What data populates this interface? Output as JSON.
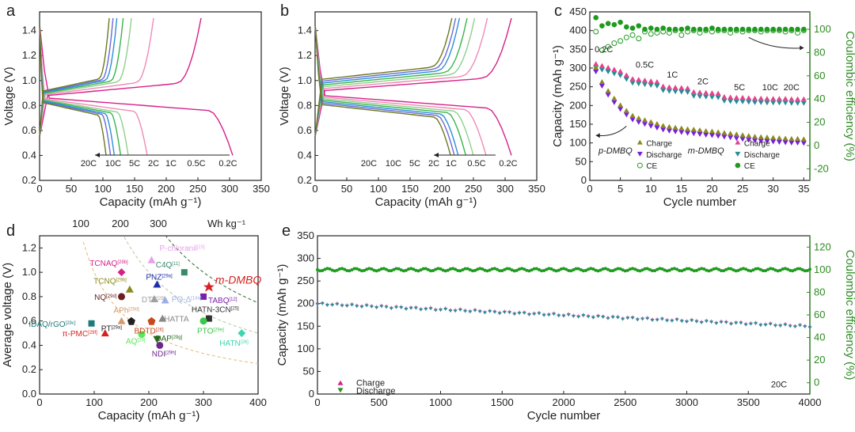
{
  "chart_data": [
    {
      "panel": "a",
      "type": "line",
      "xlabel": "Capacity (mAh g⁻¹)",
      "ylabel": "Voltage (V)",
      "xlim": [
        0,
        350
      ],
      "ylim": [
        0.2,
        1.55
      ],
      "xticks": [
        0,
        50,
        100,
        150,
        200,
        250,
        300,
        350
      ],
      "yticks": [
        0.2,
        0.4,
        0.6,
        0.8,
        1.0,
        1.2,
        1.4
      ],
      "series": [
        {
          "name": "0.2C",
          "color": "#d6218a",
          "charge_cap": 255,
          "discharge_cap": 305
        },
        {
          "name": "0.5C",
          "color": "#f08ab8",
          "charge_cap": 180,
          "discharge_cap": 170
        },
        {
          "name": "1C",
          "color": "#8fd08a",
          "charge_cap": 145,
          "discharge_cap": 140
        },
        {
          "name": "2C",
          "color": "#39b54a",
          "charge_cap": 132,
          "discharge_cap": 128
        },
        {
          "name": "5C",
          "color": "#2a8fd8",
          "charge_cap": 122,
          "discharge_cap": 118
        },
        {
          "name": "10C",
          "color": "#6a6ad8",
          "charge_cap": 116,
          "discharge_cap": 112
        },
        {
          "name": "20C",
          "color": "#6b7a1e",
          "charge_cap": 110,
          "discharge_cap": 105
        }
      ],
      "rate_labels": [
        "20C",
        "10C",
        "5C",
        "2C",
        "1C",
        "0.5C",
        "0.2C"
      ]
    },
    {
      "panel": "b",
      "type": "line",
      "xlabel": "Capacity (mAh g⁻¹)",
      "ylabel": "Voltage (V)",
      "xlim": [
        0,
        350
      ],
      "ylim": [
        0.2,
        1.55
      ],
      "xticks": [
        0,
        50,
        100,
        150,
        200,
        250,
        300,
        350
      ],
      "yticks": [
        0.2,
        0.4,
        0.6,
        0.8,
        1.0,
        1.2,
        1.4
      ],
      "series": [
        {
          "name": "0.2C",
          "color": "#d6218a",
          "charge_cap": 310,
          "discharge_cap": 310
        },
        {
          "name": "0.5C",
          "color": "#f08ab8",
          "charge_cap": 272,
          "discharge_cap": 270
        },
        {
          "name": "1C",
          "color": "#8fd08a",
          "charge_cap": 252,
          "discharge_cap": 250
        },
        {
          "name": "2C",
          "color": "#39b54a",
          "charge_cap": 240,
          "discharge_cap": 238
        },
        {
          "name": "5C",
          "color": "#2a8fd8",
          "charge_cap": 228,
          "discharge_cap": 226
        },
        {
          "name": "10C",
          "color": "#6a6ad8",
          "charge_cap": 222,
          "discharge_cap": 220
        },
        {
          "name": "20C",
          "color": "#6b7a1e",
          "charge_cap": 216,
          "discharge_cap": 214
        }
      ],
      "rate_labels": [
        "20C",
        "10C",
        "5C",
        "2C",
        "1C",
        "0.5C",
        "0.2C"
      ]
    },
    {
      "panel": "c",
      "type": "scatter",
      "xlabel": "Cycle number",
      "ylabel": "Capacity (mAh g⁻¹)",
      "ylabel_right": "Coulombic efficiency (%)",
      "xlim": [
        0,
        36
      ],
      "ylim": [
        0,
        450
      ],
      "ylim_right": [
        -30,
        115
      ],
      "xticks": [
        0,
        5,
        10,
        15,
        20,
        25,
        30,
        35
      ],
      "yticks": [
        0,
        50,
        100,
        150,
        200,
        250,
        300,
        350,
        400,
        450
      ],
      "yticks_right": [
        -20,
        0,
        20,
        40,
        60,
        80,
        100
      ],
      "rate_labels": [
        "0.2C",
        "0.5C",
        "1C",
        "2C",
        "5C",
        "10C",
        "20C"
      ],
      "p_charge": [
        300,
        262,
        238,
        218,
        200,
        185,
        172,
        165,
        160,
        155,
        150,
        145,
        142,
        140,
        138,
        136,
        135,
        133,
        131,
        130,
        128,
        126,
        124,
        122,
        120,
        118,
        116,
        115,
        114,
        113,
        112,
        111,
        110,
        110,
        109
      ],
      "m_charge": [
        310,
        305,
        300,
        295,
        290,
        280,
        270,
        268,
        266,
        264,
        262,
        250,
        248,
        247,
        246,
        245,
        235,
        234,
        233,
        232,
        231,
        222,
        221,
        220,
        220,
        219,
        218,
        218,
        217,
        217,
        217,
        217,
        216,
        216,
        216
      ],
      "p_ce": [
        98,
        82,
        85,
        88,
        90,
        93,
        95,
        92,
        98,
        96,
        97,
        98,
        97,
        99,
        95,
        98,
        99,
        97,
        99,
        98,
        99,
        99,
        97,
        99,
        98,
        99,
        99,
        98,
        99,
        99,
        99,
        98,
        99,
        97,
        99
      ],
      "m_ce": [
        110,
        103,
        105,
        104,
        106,
        102,
        101,
        103,
        100,
        101,
        100,
        101,
        100,
        100,
        100,
        101,
        100,
        100,
        100,
        101,
        100,
        100,
        100,
        100,
        100,
        100,
        100,
        100,
        100,
        100,
        100,
        100,
        100,
        100,
        100
      ],
      "legend": {
        "p_group": "p-DMBQ",
        "m_group": "m-DMBQ",
        "entries": [
          "Charge",
          "Discharge",
          "CE"
        ]
      }
    },
    {
      "panel": "d",
      "type": "scatter",
      "xlabel": "Capacity (mAh g⁻¹)",
      "ylabel": "Average voltage (V)",
      "xlim": [
        0,
        400
      ],
      "ylim": [
        0,
        1.3
      ],
      "xticks": [
        0,
        100,
        200,
        300,
        400
      ],
      "yticks": [
        0.0,
        0.2,
        0.4,
        0.6,
        0.8,
        1.0,
        1.2
      ],
      "energy_labels": [
        "100",
        "200",
        "300",
        "Wh kg⁻¹"
      ],
      "points": [
        {
          "label": "TCNAQ",
          "ref": "[29b]",
          "x": 150,
          "y": 1.0,
          "color": "#d6218a"
        },
        {
          "label": "P-chloranil",
          "ref": "[15]",
          "x": 205,
          "y": 1.1,
          "color": "#e8a0e8"
        },
        {
          "label": "C4Q",
          "ref": "[11]",
          "x": 265,
          "y": 1.0,
          "color": "#3a8a6a"
        },
        {
          "label": "m-DMBQ",
          "ref": "",
          "x": 310,
          "y": 0.88,
          "color": "#d62222"
        },
        {
          "label": "PNZ",
          "ref": "[29a]",
          "x": 215,
          "y": 0.9,
          "color": "#1f2fa8"
        },
        {
          "label": "TCNQ",
          "ref": "[29b]",
          "x": 165,
          "y": 0.86,
          "color": "#8a8a1e"
        },
        {
          "label": "DTT",
          "ref": "[29]",
          "x": 210,
          "y": 0.78,
          "color": "#a0a0a0"
        },
        {
          "label": "NQ",
          "ref": "[29d]",
          "x": 150,
          "y": 0.8,
          "color": "#6a2020"
        },
        {
          "label": "PQ-Δ",
          "ref": "[14a]",
          "x": 230,
          "y": 0.77,
          "color": "#9ab0e8"
        },
        {
          "label": "TABQ",
          "ref": "[12]",
          "x": 300,
          "y": 0.8,
          "color": "#7a1fa8"
        },
        {
          "label": "APh",
          "ref": "[29d]",
          "x": 150,
          "y": 0.6,
          "color": "#d49a6a"
        },
        {
          "label": "HATTA",
          "ref": "",
          "x": 225,
          "y": 0.62,
          "color": "#888888"
        },
        {
          "label": "HATN-3CN",
          "ref": "[25]",
          "x": 310,
          "y": 0.62,
          "color": "#333333"
        },
        {
          "label": "IDAQ/rGO",
          "ref": "[29c]",
          "x": 95,
          "y": 0.58,
          "color": "#1f7a7a"
        },
        {
          "label": "PT",
          "ref": "[29a]",
          "x": 168,
          "y": 0.6,
          "color": "#222222"
        },
        {
          "label": "BDTD",
          "ref": "[26]",
          "x": 205,
          "y": 0.6,
          "color": "#c84a1a"
        },
        {
          "label": "PTO",
          "ref": "[29e]",
          "x": 300,
          "y": 0.6,
          "color": "#39c84a"
        },
        {
          "label": "π-PMC",
          "ref": "[29f]",
          "x": 120,
          "y": 0.5,
          "color": "#d62222"
        },
        {
          "label": "AQ",
          "ref": "[29]",
          "x": 187,
          "y": 0.49,
          "color": "#5ae85a"
        },
        {
          "label": "DAP",
          "ref": "[29g]",
          "x": 215,
          "y": 0.45,
          "color": "#2a6a1e"
        },
        {
          "label": "NDI",
          "ref": "[29h]",
          "x": 220,
          "y": 0.4,
          "color": "#6a2a8a"
        },
        {
          "label": "HATN",
          "ref": "[26]",
          "x": 370,
          "y": 0.5,
          "color": "#3ad8b0"
        }
      ]
    },
    {
      "panel": "e",
      "type": "scatter",
      "xlabel": "Cycle number",
      "ylabel": "Capacity (mAh g⁻¹)",
      "ylabel_right": "Coulombic efficiency (%)",
      "xlim": [
        0,
        4000
      ],
      "ylim": [
        0,
        350
      ],
      "ylim_right": [
        -10,
        130
      ],
      "xticks": [
        0,
        500,
        1000,
        1500,
        2000,
        2500,
        3000,
        3500,
        4000
      ],
      "yticks": [
        0,
        50,
        100,
        150,
        200,
        250,
        300,
        350
      ],
      "yticks_right": [
        0,
        20,
        40,
        60,
        80,
        100,
        120
      ],
      "capacity_start": 200,
      "capacity_end": 150,
      "ce_level": 100,
      "rate_label": "20C",
      "legend": [
        "Charge",
        "Discharge"
      ]
    }
  ],
  "panel_letters": [
    "a",
    "b",
    "c",
    "d",
    "e"
  ],
  "colors": {
    "green_axis": "#2e8b22",
    "ce_green": "#1f9a1f",
    "p_charge": "#8a8a1e",
    "p_discharge": "#7a1fd8",
    "m_charge": "#e8418a",
    "m_discharge": "#2a8a9a"
  }
}
